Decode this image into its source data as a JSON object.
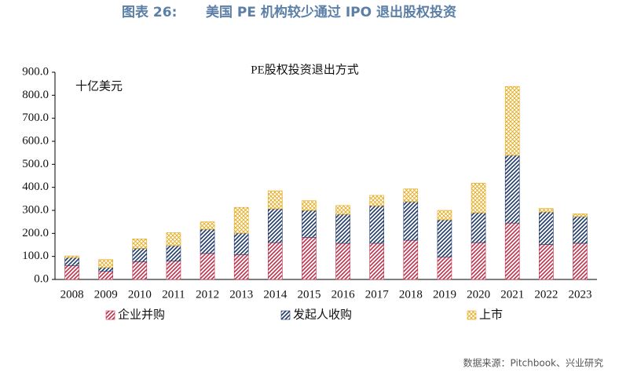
{
  "header": {
    "label": "图表 26:",
    "title": "美国 PE 机构较少通过 IPO 退出股权投资"
  },
  "source": "数据来源：Pitchbook、兴业研究",
  "chart_data": {
    "type": "bar",
    "stacked": true,
    "title": "PE股权投资退出方式",
    "unit_label": "十亿美元",
    "categories": [
      "2008",
      "2009",
      "2010",
      "2011",
      "2012",
      "2013",
      "2014",
      "2015",
      "2016",
      "2017",
      "2018",
      "2019",
      "2020",
      "2021",
      "2022",
      "2023"
    ],
    "series": [
      {
        "name": "企业并购",
        "color": "#c0304a",
        "hatch": "diagonal",
        "values": [
          60,
          35,
          77,
          80,
          113,
          108,
          160,
          183,
          157,
          157,
          170,
          98,
          160,
          245,
          152,
          157
        ]
      },
      {
        "name": "发起人收购",
        "color": "#1f3a6b",
        "hatch": "diagonal",
        "values": [
          35,
          17,
          58,
          67,
          105,
          93,
          147,
          117,
          126,
          163,
          168,
          161,
          130,
          294,
          141,
          116
        ]
      },
      {
        "name": "上市",
        "color": "#e6a817",
        "hatch": "cross",
        "values": [
          7,
          34,
          41,
          56,
          32,
          112,
          78,
          42,
          38,
          45,
          55,
          41,
          128,
          299,
          15,
          12
        ]
      }
    ],
    "ylim": [
      0,
      900
    ],
    "yticks": [
      {
        "value": 0,
        "label": "0.0"
      },
      {
        "value": 100,
        "label": "100.0"
      },
      {
        "value": 200,
        "label": "200.0"
      },
      {
        "value": 300,
        "label": "300.0"
      },
      {
        "value": 400,
        "label": "400.0"
      },
      {
        "value": 500,
        "label": "500.0"
      },
      {
        "value": 600,
        "label": "600.0"
      },
      {
        "value": 700,
        "label": "700.0"
      },
      {
        "value": 800,
        "label": "800.0"
      },
      {
        "value": 900,
        "label": "900.0"
      }
    ],
    "grid": false,
    "legend": "bottom"
  }
}
